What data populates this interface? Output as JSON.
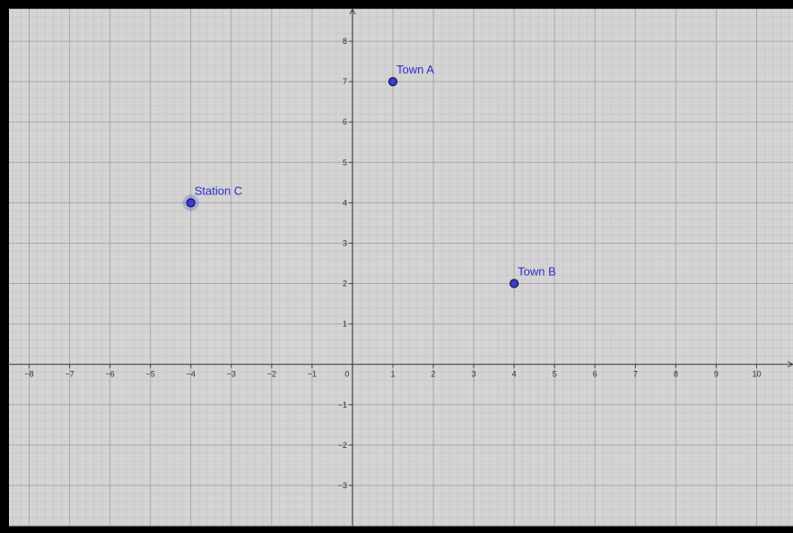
{
  "chart_data": {
    "type": "scatter",
    "xlim": [
      -8.5,
      10.9
    ],
    "ylim": [
      -4.0,
      8.8
    ],
    "x_ticks": [
      -8,
      -7,
      -6,
      -5,
      -4,
      -3,
      -2,
      -1,
      0,
      1,
      2,
      3,
      4,
      5,
      6,
      7,
      8,
      9,
      10
    ],
    "y_ticks": [
      -3,
      -2,
      -1,
      1,
      2,
      3,
      4,
      5,
      6,
      7,
      8
    ],
    "x_tick_labels": [
      "−8",
      "−7",
      "−6",
      "−5",
      "−4",
      "−3",
      "−2",
      "−1",
      "0",
      "1",
      "2",
      "3",
      "4",
      "5",
      "6",
      "7",
      "8",
      "9",
      "10"
    ],
    "y_tick_labels": [
      "−3",
      "−2",
      "−1",
      "1",
      "2",
      "3",
      "4",
      "5",
      "6",
      "7",
      "8"
    ],
    "grid": true,
    "minor_grid": true,
    "points": [
      {
        "label": "Town A",
        "x": 1,
        "y": 7,
        "selected": false
      },
      {
        "label": "Town B",
        "x": 4,
        "y": 2,
        "selected": false
      },
      {
        "label": "Station C",
        "x": -4,
        "y": 4,
        "selected": true
      }
    ]
  },
  "colors": {
    "background": "#d4d4d4",
    "major_grid": "#a8a8a8",
    "minor_grid": "#c4c4c4",
    "axis": "#444444",
    "point_fill": "#3b3bd6",
    "point_stroke": "#15154a",
    "label": "#2b2bd0",
    "frame": "#000000"
  }
}
